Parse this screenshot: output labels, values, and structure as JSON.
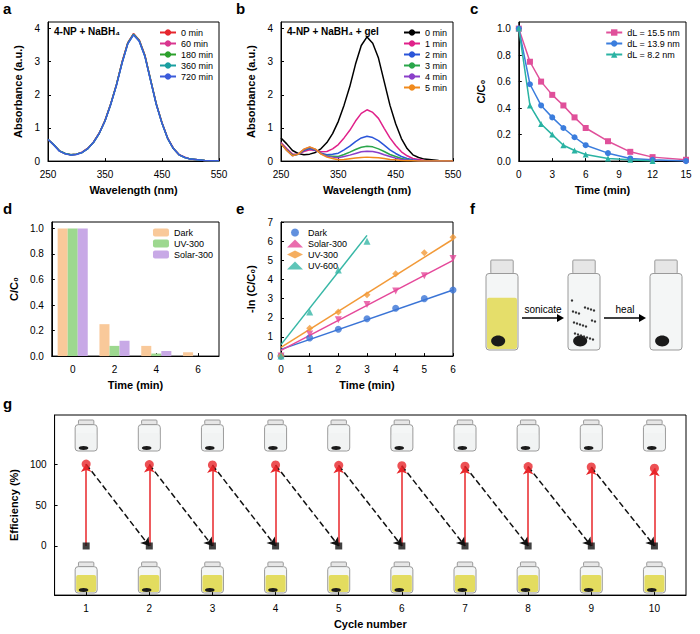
{
  "chart_data": [
    {
      "panel": "a",
      "type": "line",
      "title": "4-NP + NaBH₄",
      "x_label": "Wavelength (nm)",
      "y_label": "Absorbance (a.u.)",
      "x": [
        250,
        260,
        270,
        280,
        290,
        300,
        310,
        320,
        330,
        340,
        350,
        360,
        370,
        380,
        390,
        400,
        410,
        420,
        430,
        440,
        450,
        460,
        470,
        480,
        490,
        500,
        525,
        550
      ],
      "series": [
        {
          "name": "0 min",
          "color": "#e6262e",
          "values": [
            0.65,
            0.5,
            0.31,
            0.23,
            0.19,
            0.21,
            0.27,
            0.39,
            0.58,
            0.85,
            1.23,
            1.73,
            2.31,
            3.0,
            3.58,
            3.85,
            3.66,
            3.2,
            2.46,
            1.73,
            1.16,
            0.69,
            0.39,
            0.19,
            0.12,
            0.06,
            0.02,
            0.01
          ]
        },
        {
          "name": "60 min",
          "color": "#d9368f",
          "values": [
            0.66,
            0.5,
            0.31,
            0.23,
            0.19,
            0.21,
            0.27,
            0.39,
            0.58,
            0.85,
            1.22,
            1.72,
            2.3,
            2.99,
            3.57,
            3.84,
            3.65,
            3.19,
            2.45,
            1.72,
            1.15,
            0.69,
            0.38,
            0.19,
            0.12,
            0.06,
            0.02,
            0.01
          ]
        },
        {
          "name": "180 min",
          "color": "#2ca02c",
          "values": [
            0.65,
            0.49,
            0.31,
            0.23,
            0.19,
            0.21,
            0.26,
            0.38,
            0.57,
            0.84,
            1.22,
            1.72,
            2.3,
            2.98,
            3.56,
            3.83,
            3.64,
            3.18,
            2.45,
            1.72,
            1.15,
            0.68,
            0.38,
            0.19,
            0.11,
            0.06,
            0.02,
            0.01
          ]
        },
        {
          "name": "360 min",
          "color": "#1a9fa0",
          "values": [
            0.66,
            0.5,
            0.31,
            0.23,
            0.19,
            0.21,
            0.26,
            0.38,
            0.57,
            0.84,
            1.21,
            1.71,
            2.29,
            2.97,
            3.55,
            3.82,
            3.63,
            3.17,
            2.44,
            1.71,
            1.14,
            0.68,
            0.38,
            0.19,
            0.11,
            0.06,
            0.02,
            0.01
          ]
        },
        {
          "name": "720 min",
          "color": "#3b5bdb",
          "values": [
            0.65,
            0.49,
            0.3,
            0.22,
            0.18,
            0.2,
            0.26,
            0.38,
            0.57,
            0.84,
            1.21,
            1.71,
            2.28,
            2.96,
            3.54,
            3.81,
            3.62,
            3.16,
            2.43,
            1.71,
            1.14,
            0.68,
            0.38,
            0.19,
            0.11,
            0.06,
            0.02,
            0.01
          ]
        }
      ],
      "xlim": [
        250,
        550
      ],
      "xticks": [
        250,
        350,
        450,
        550
      ],
      "ylim": [
        0,
        4.2
      ],
      "yticks": [
        0,
        1,
        2,
        3,
        4
      ],
      "legend": "top-right",
      "grid": false
    },
    {
      "panel": "b",
      "type": "line",
      "title": "4-NP + NaBH₄ + gel",
      "x_label": "Wavelength (nm)",
      "y_label": "Absorbance (a.u.)",
      "x": [
        250,
        260,
        270,
        280,
        290,
        300,
        310,
        320,
        330,
        340,
        350,
        360,
        370,
        380,
        390,
        400,
        410,
        420,
        430,
        440,
        450,
        460,
        470,
        480,
        490,
        500,
        525,
        550
      ],
      "series": [
        {
          "name": "0 min",
          "color": "#000000",
          "values": [
            0.7,
            0.52,
            0.32,
            0.23,
            0.19,
            0.21,
            0.26,
            0.38,
            0.56,
            0.83,
            1.2,
            1.69,
            2.25,
            2.93,
            3.49,
            3.75,
            3.56,
            3.11,
            2.4,
            1.69,
            1.13,
            0.68,
            0.38,
            0.19,
            0.11,
            0.06,
            0.02,
            0.01
          ]
        },
        {
          "name": "1 min",
          "color": "#e0218a",
          "values": [
            0.56,
            0.38,
            0.21,
            0.21,
            0.29,
            0.34,
            0.32,
            0.28,
            0.29,
            0.37,
            0.5,
            0.7,
            0.93,
            1.21,
            1.44,
            1.55,
            1.47,
            1.29,
            0.99,
            0.7,
            0.47,
            0.28,
            0.16,
            0.08,
            0.05,
            0.02,
            0.01,
            0.0
          ]
        },
        {
          "name": "2 min",
          "color": "#2b55d9",
          "values": [
            0.53,
            0.34,
            0.18,
            0.21,
            0.32,
            0.38,
            0.33,
            0.24,
            0.19,
            0.21,
            0.24,
            0.34,
            0.45,
            0.59,
            0.7,
            0.75,
            0.71,
            0.62,
            0.48,
            0.34,
            0.23,
            0.14,
            0.08,
            0.04,
            0.02,
            0.01,
            0.0,
            0.0
          ]
        },
        {
          "name": "3 min",
          "color": "#2aa64a",
          "values": [
            0.53,
            0.33,
            0.18,
            0.21,
            0.34,
            0.4,
            0.35,
            0.23,
            0.16,
            0.15,
            0.14,
            0.2,
            0.27,
            0.35,
            0.42,
            0.45,
            0.43,
            0.37,
            0.29,
            0.2,
            0.14,
            0.08,
            0.05,
            0.02,
            0.01,
            0.01,
            0.0,
            0.0
          ]
        },
        {
          "name": "4 min",
          "color": "#8a3fc9",
          "values": [
            0.53,
            0.33,
            0.16,
            0.21,
            0.35,
            0.42,
            0.35,
            0.22,
            0.15,
            0.12,
            0.1,
            0.14,
            0.18,
            0.23,
            0.28,
            0.3,
            0.29,
            0.25,
            0.19,
            0.14,
            0.09,
            0.05,
            0.03,
            0.02,
            0.01,
            0.0,
            0.0,
            0.0
          ]
        },
        {
          "name": "5 min",
          "color": "#f08a1c",
          "values": [
            0.52,
            0.32,
            0.16,
            0.21,
            0.36,
            0.43,
            0.36,
            0.21,
            0.12,
            0.08,
            0.04,
            0.05,
            0.07,
            0.09,
            0.11,
            0.12,
            0.11,
            0.1,
            0.08,
            0.05,
            0.04,
            0.02,
            0.01,
            0.01,
            0.0,
            0.0,
            0.0,
            0.0
          ]
        }
      ],
      "xlim": [
        250,
        550
      ],
      "xticks": [
        250,
        350,
        450,
        550
      ],
      "ylim": [
        0,
        4.2
      ],
      "yticks": [
        0,
        1,
        2,
        3,
        4
      ],
      "legend": "top-right",
      "grid": false
    },
    {
      "panel": "c",
      "type": "line",
      "x_label": "Time (min)",
      "y_label": "C/C₀",
      "x": [
        0,
        1,
        2,
        3,
        4,
        5,
        6,
        8,
        10,
        12,
        15
      ],
      "series": [
        {
          "name": "dL = 15.5 nm",
          "color": "#e0509a",
          "marker": "square",
          "values": [
            1,
            0.75,
            0.6,
            0.5,
            0.42,
            0.33,
            0.25,
            0.15,
            0.07,
            0.03,
            0.01
          ]
        },
        {
          "name": "dL = 13.9 nm",
          "color": "#3b7ddd",
          "marker": "circle",
          "values": [
            1,
            0.58,
            0.42,
            0.33,
            0.25,
            0.18,
            0.12,
            0.06,
            0.02,
            0.01,
            0.0
          ]
        },
        {
          "name": "dL = 8.2 nm",
          "color": "#2ab3a3",
          "marker": "triangle",
          "values": [
            1,
            0.42,
            0.28,
            0.2,
            0.12,
            0.08,
            0.05,
            0.02,
            0.01,
            0.0,
            null
          ]
        }
      ],
      "xlim": [
        0,
        15
      ],
      "xticks": [
        0,
        3,
        6,
        9,
        12,
        15
      ],
      "ylim": [
        0,
        1.05
      ],
      "yticks": [
        {
          "value": 0,
          "label": "0.0"
        },
        0.2,
        0.4,
        0.6,
        0.8,
        {
          "value": 1,
          "label": "1.0"
        }
      ],
      "legend": "top-right",
      "grid": false
    },
    {
      "panel": "d",
      "type": "bar",
      "x_label": "Time (min)",
      "y_label": "C/C₀",
      "categories": [
        "0",
        "2",
        "4",
        "6"
      ],
      "series": [
        {
          "name": "Dark",
          "color": "#f9c99a",
          "values": [
            1,
            0.25,
            0.08,
            0.03
          ]
        },
        {
          "name": "UV-300",
          "color": "#9dd88f",
          "values": [
            1,
            0.08,
            0.02,
            null
          ]
        },
        {
          "name": "Solar-300",
          "color": "#c8a9e6",
          "values": [
            1,
            0.12,
            0.04,
            null
          ]
        }
      ],
      "ylim": [
        0,
        1.05
      ],
      "yticks": [
        {
          "value": 0,
          "label": "0.0"
        },
        0.2,
        0.4,
        0.6,
        0.8,
        {
          "value": 1,
          "label": "1.0"
        }
      ],
      "legend": "top-right",
      "grid": false
    },
    {
      "panel": "e",
      "type": "scatter",
      "x_label": "Time (min)",
      "y_label": "-ln (C/C₀)",
      "x": [
        0,
        1,
        2,
        3,
        4,
        5,
        6
      ],
      "series": [
        {
          "name": "Dark",
          "color": "#3a74d6",
          "marker": "circle",
          "values": [
            0,
            0.95,
            1.4,
            1.95,
            2.5,
            3.0,
            3.45
          ],
          "fit": [
            [
              0,
              0.35
            ],
            [
              6,
              3.45
            ]
          ]
        },
        {
          "name": "Solar-300",
          "color": "#e5489a",
          "marker": "triangle-down",
          "values": [
            0,
            1.15,
            1.9,
            2.7,
            3.4,
            4.2,
            5.1
          ],
          "fit": [
            [
              0,
              0.3
            ],
            [
              6,
              5.0
            ]
          ]
        },
        {
          "name": "UV-300",
          "color": "#f29a38",
          "marker": "diamond",
          "values": [
            0,
            1.45,
            2.3,
            3.2,
            4.3,
            5.4,
            6.2
          ],
          "fit": [
            [
              0,
              0.45
            ],
            [
              6,
              6.1
            ]
          ]
        },
        {
          "name": "UV-600",
          "color": "#37b7a6",
          "marker": "triangle",
          "values": [
            0,
            2.3,
            4.5,
            6.0,
            null,
            null,
            null
          ],
          "fit": [
            [
              0,
              0.6
            ],
            [
              3,
              6.3
            ]
          ]
        }
      ],
      "xlim": [
        0,
        6
      ],
      "xticks": [
        0,
        1,
        2,
        3,
        4,
        5,
        6
      ],
      "ylim": [
        0,
        7
      ],
      "yticks": [
        0,
        1,
        2,
        3,
        4,
        5,
        6,
        7
      ],
      "legend": "top-left",
      "grid": false
    },
    {
      "panel": "f",
      "type": "photo",
      "annotations": [
        "sonicate",
        "heal"
      ]
    },
    {
      "panel": "g",
      "type": "scatter",
      "x_label": "Cycle number",
      "y_label": "Efficiency (%)",
      "categories": [
        1,
        2,
        3,
        4,
        5,
        6,
        7,
        8,
        9,
        10
      ],
      "series": [
        {
          "color": "#e8262a",
          "marker": "circle",
          "line_style": "solid",
          "values": [
            100,
            99.5,
            99,
            99,
            98.5,
            98,
            97.5,
            97,
            96.5,
            95
          ]
        },
        {
          "color": "#111111",
          "marker": "square",
          "line_style": "dashed",
          "values": [
            0,
            0,
            0,
            0,
            0,
            0,
            0,
            0,
            0,
            0
          ]
        }
      ],
      "ylim": [
        -60,
        160
      ],
      "yticks": [
        0,
        50,
        100
      ],
      "grid": false
    }
  ]
}
